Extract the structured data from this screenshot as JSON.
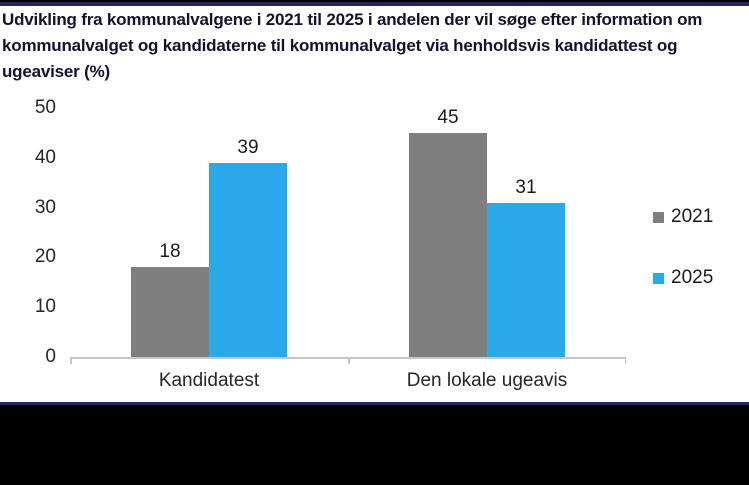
{
  "title": "Udvikling fra kommunalvalgene i 2021 til 2025 i andelen der vil søge efter information om kommunalvalget og kandidaterne til kommunalvalget via henholdsvis kandidattest og ugeaviser (%)",
  "colors": {
    "accent_border": "#1F2A5B",
    "footer_background": "#000000",
    "axis_line": "#C6C6C6",
    "title_text": "#121230",
    "series_2021": "#7F7F7F",
    "series_2025": "#29A8EA"
  },
  "chart_data": {
    "type": "bar",
    "title": "Udvikling fra kommunalvalgene i 2021 til 2025 i andelen der vil søge efter information om kommunalvalget og kandidaterne til kommunalvalget via henholdsvis kandidattest og ugeaviser (%)",
    "categories": [
      "Kandidatest",
      "Den lokale ugeavis"
    ],
    "series": [
      {
        "name": "2021",
        "color": "#7F7F7F",
        "values": [
          18,
          45
        ]
      },
      {
        "name": "2025",
        "color": "#29A8EA",
        "values": [
          39,
          31
        ]
      }
    ],
    "data_labels": true,
    "xlabel": "",
    "ylabel": "",
    "ylim": [
      0,
      50
    ],
    "yticks": [
      0,
      10,
      20,
      30,
      40,
      50
    ],
    "grid": false,
    "legend_position": "right"
  }
}
